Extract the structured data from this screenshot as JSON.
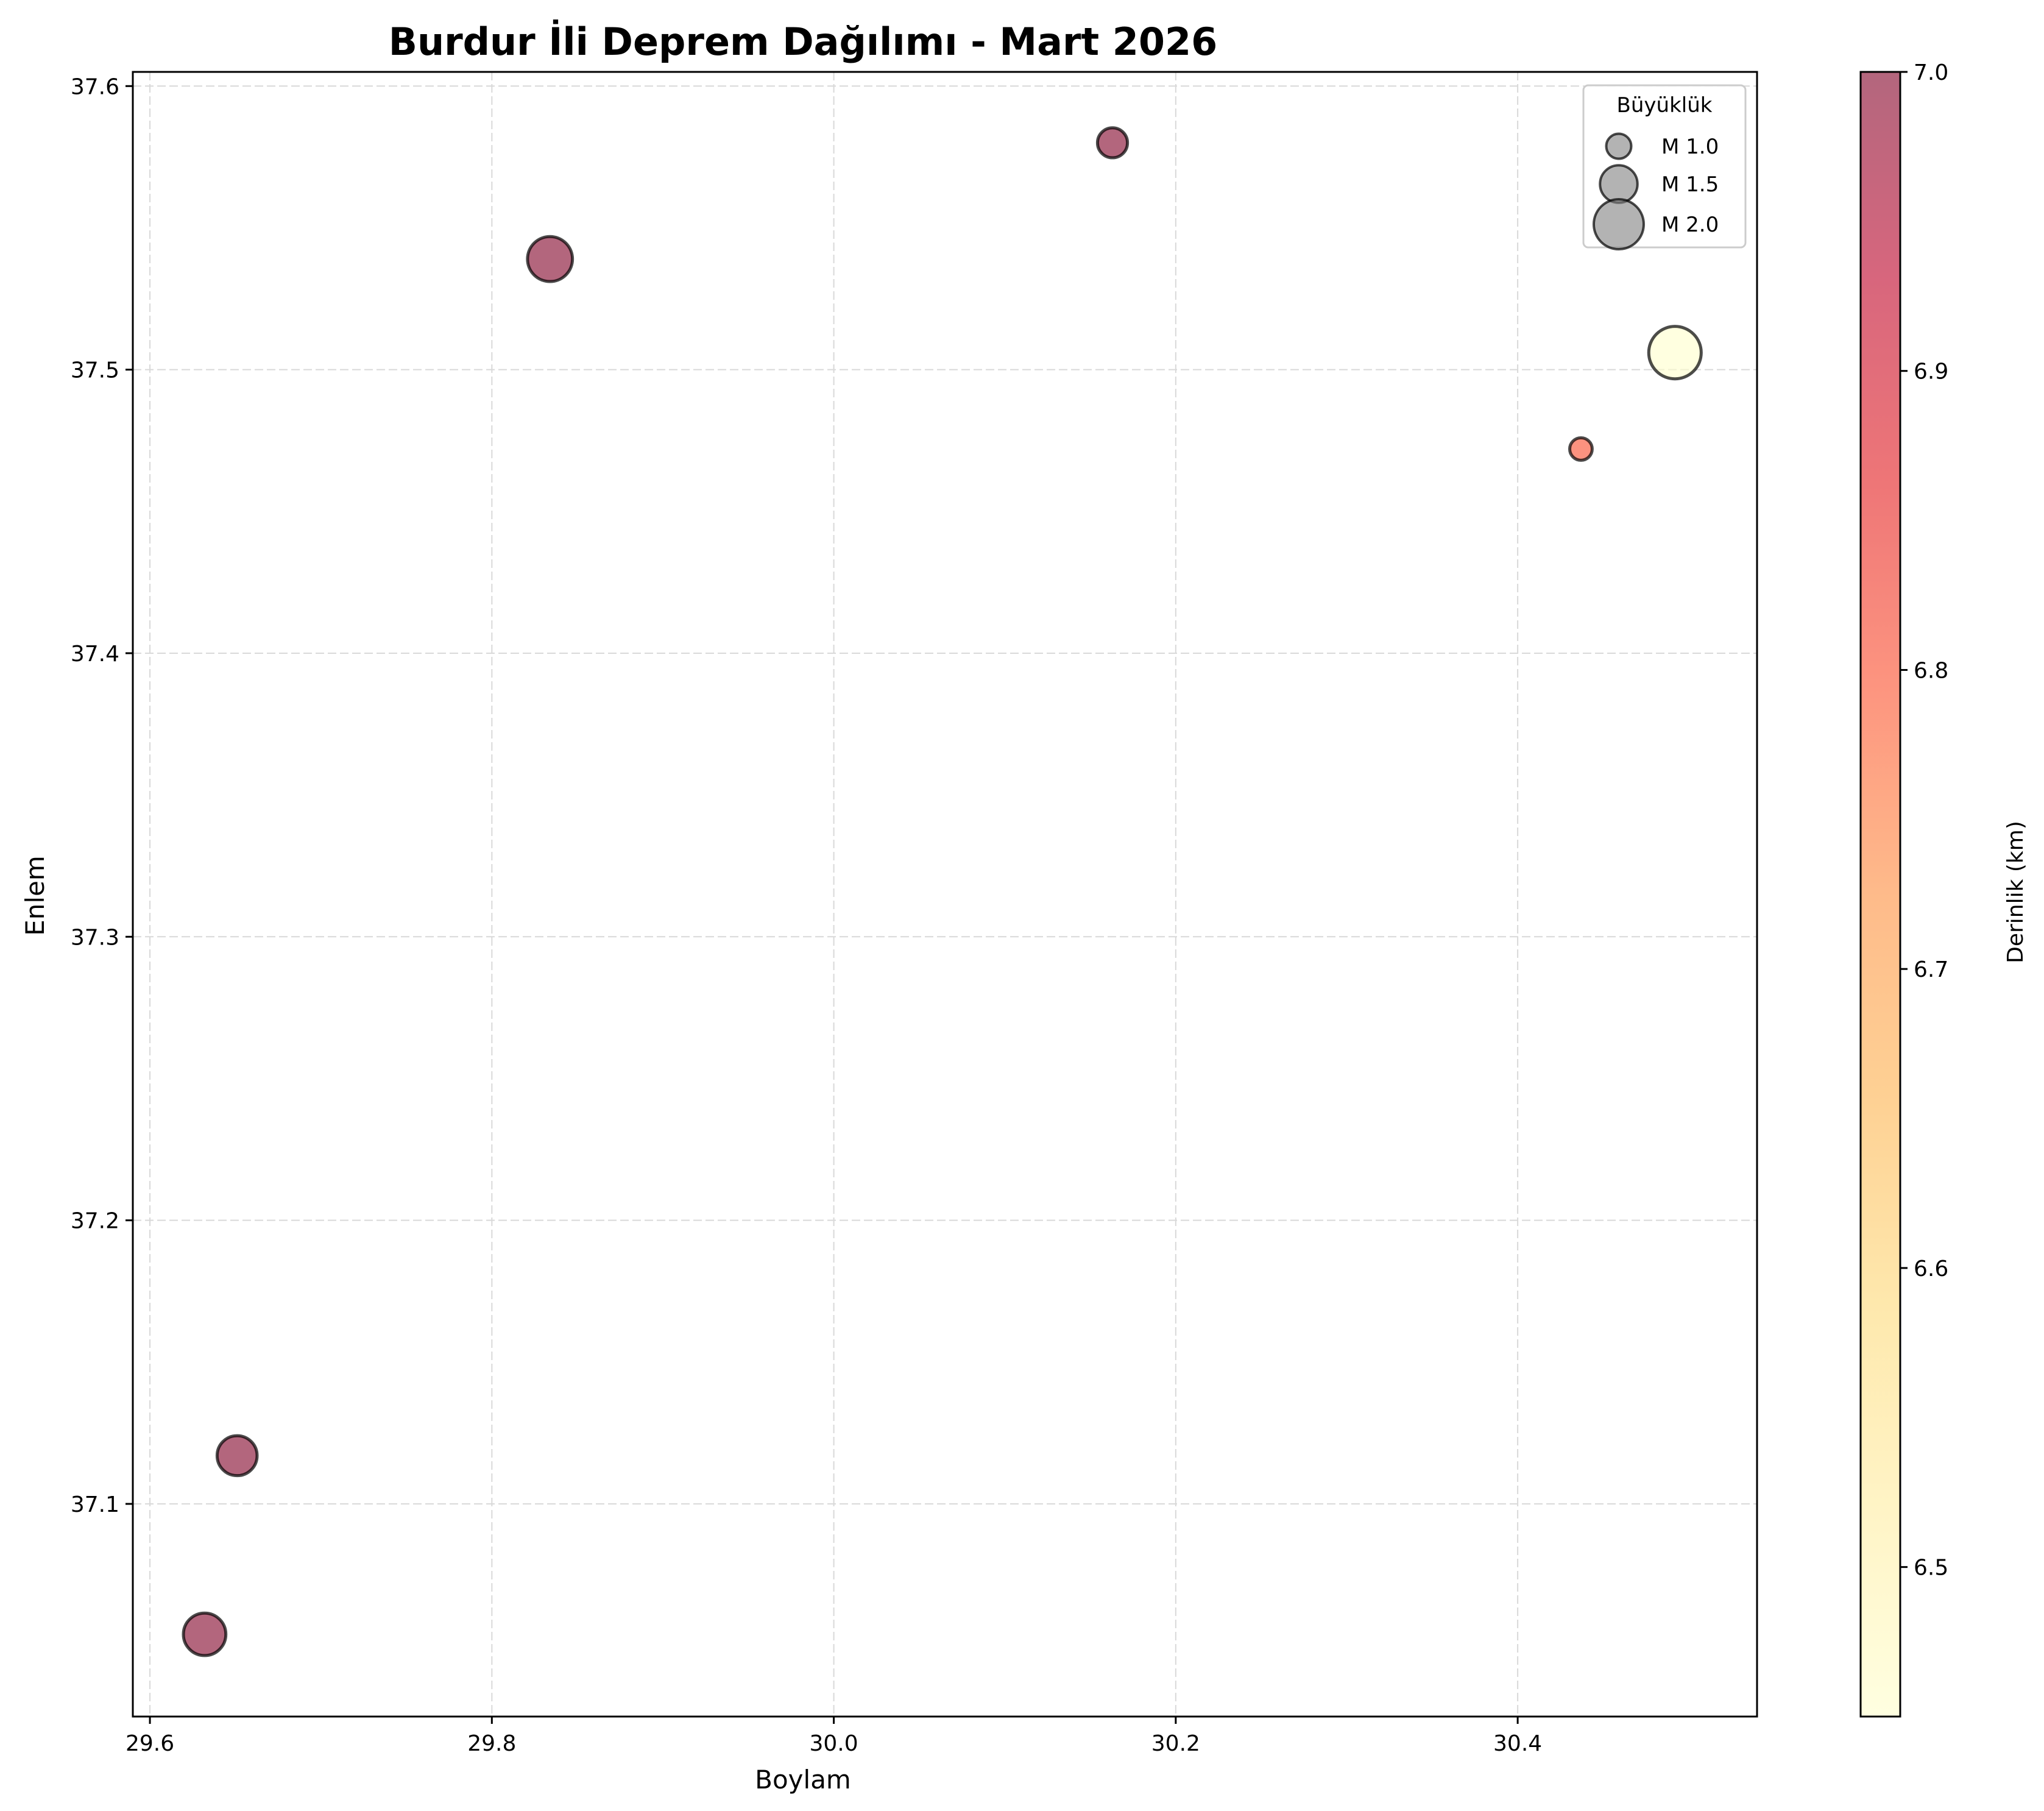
{
  "chart_data": {
    "type": "scatter",
    "title": "Burdur İli Deprem Dağılımı - Mart 2026",
    "xlabel": "Boylam",
    "ylabel": "Enlem",
    "xlim": [
      29.59,
      30.54
    ],
    "ylim": [
      37.025,
      37.605
    ],
    "x_ticks": [
      "29.6",
      "29.8",
      "30.0",
      "30.2",
      "30.4"
    ],
    "x_tick_values": [
      29.6,
      29.8,
      30.0,
      30.2,
      30.4
    ],
    "y_ticks": [
      "37.1",
      "37.2",
      "37.3",
      "37.4",
      "37.5",
      "37.6"
    ],
    "y_tick_values": [
      37.1,
      37.2,
      37.3,
      37.4,
      37.5,
      37.6
    ],
    "grid": true,
    "points": [
      {
        "lon": 29.632,
        "lat": 37.054,
        "magnitude": 1.7,
        "depth_km": 7.0
      },
      {
        "lon": 29.651,
        "lat": 37.117,
        "magnitude": 1.6,
        "depth_km": 7.0
      },
      {
        "lon": 29.834,
        "lat": 37.539,
        "magnitude": 1.8,
        "depth_km": 7.0
      },
      {
        "lon": 30.163,
        "lat": 37.58,
        "magnitude": 1.2,
        "depth_km": 7.0
      },
      {
        "lon": 30.437,
        "lat": 37.472,
        "magnitude": 0.9,
        "depth_km": 6.8
      },
      {
        "lon": 30.492,
        "lat": 37.506,
        "magnitude": 2.1,
        "depth_km": 6.45
      }
    ],
    "colorbar": {
      "label": "Derinlik (km)",
      "range": [
        6.45,
        7.0
      ],
      "ticks": [
        "6.5",
        "6.6",
        "6.7",
        "6.8",
        "6.9",
        "7.0"
      ],
      "tick_values": [
        6.5,
        6.6,
        6.7,
        6.8,
        6.9,
        7.0
      ],
      "colormap": "YlOrRd",
      "stops": [
        "#ffffcc",
        "#ffeda0",
        "#fed976",
        "#feb24c",
        "#fd8d3c",
        "#fc4e2a",
        "#e31a1c",
        "#bd0026",
        "#800026"
      ],
      "alpha": 0.6
    },
    "legend": {
      "title": "Büyüklük",
      "placement": "top-right",
      "entries": [
        {
          "label": "M 1.0",
          "magnitude": 1.0
        },
        {
          "label": "M 1.5",
          "magnitude": 1.5
        },
        {
          "label": "M 2.0",
          "magnitude": 2.0
        }
      ],
      "marker_color": "#808080"
    }
  }
}
